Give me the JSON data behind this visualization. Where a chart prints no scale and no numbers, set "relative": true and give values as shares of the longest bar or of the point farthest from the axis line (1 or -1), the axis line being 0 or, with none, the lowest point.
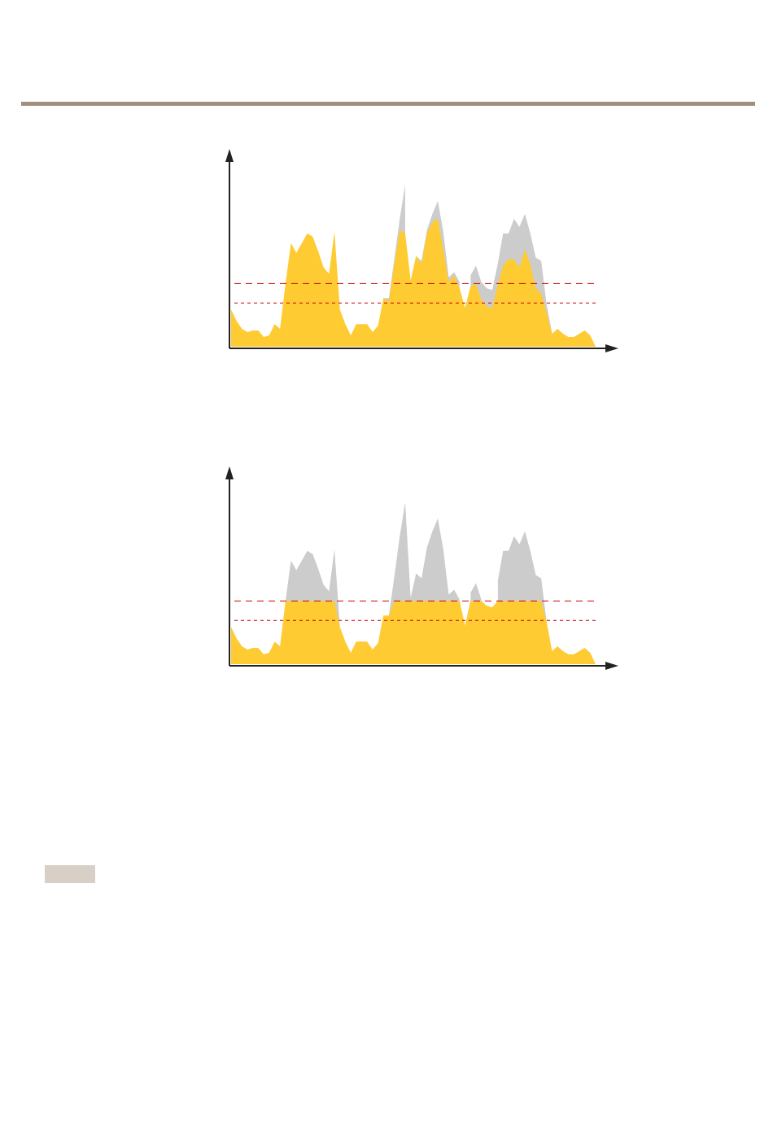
{
  "chart_data": [
    {
      "type": "area",
      "relative": true,
      "categories": [
        null,
        null,
        null,
        null,
        null,
        null,
        null,
        null,
        null,
        null,
        null,
        null,
        null,
        null,
        null,
        null,
        null,
        null,
        null,
        null,
        null,
        null,
        null,
        null,
        null,
        null,
        null,
        null,
        null,
        null,
        null,
        null,
        null,
        null,
        null,
        null,
        null,
        null,
        null,
        null,
        null,
        null,
        null,
        null,
        null,
        null,
        null,
        null,
        null,
        null,
        null,
        null,
        null,
        null,
        null,
        null,
        null,
        null,
        null,
        null,
        null,
        null,
        null,
        null,
        null,
        null,
        null,
        null
      ],
      "series": [
        {
          "color": "#cccccc",
          "values": [
            null,
            null,
            null,
            null,
            null,
            null,
            null,
            null,
            null,
            null,
            null,
            null,
            null,
            null,
            null,
            null,
            null,
            null,
            null,
            null,
            null,
            null,
            null,
            null,
            null,
            null,
            null,
            null,
            0.3,
            0.3,
            0.54,
            0.79,
            1,
            null,
            0.56,
            0.53,
            0.72,
            0.82,
            0.9,
            0.71,
            0.43,
            0.46,
            0.4,
            null,
            0.44,
            0.5,
            0.4,
            0.36,
            0.35,
            0.51,
            0.7,
            0.7,
            0.79,
            0.74,
            0.82,
            0.7,
            0.55,
            0.53,
            0.26,
            0.08,
            null,
            null,
            null,
            null,
            null,
            null,
            null,
            null
          ]
        },
        {
          "color": "#ffcb33",
          "values": [
            0.23,
            0.16,
            0.11,
            0.09,
            0.1,
            0.1,
            0.06,
            0.07,
            0.14,
            0.11,
            0.39,
            0.64,
            0.58,
            0.64,
            0.7,
            0.68,
            0.59,
            0.49,
            0.45,
            0.71,
            0.23,
            0.14,
            0.07,
            0.14,
            0.14,
            0.14,
            0.09,
            0.13,
            0.3,
            0.28,
            0.51,
            0.72,
            0.7,
            0.41,
            0.56,
            0.51,
            0.7,
            0.77,
            0.79,
            0.6,
            0.4,
            0.44,
            0.36,
            0.24,
            0.37,
            0.39,
            0.29,
            0.25,
            0.24,
            0.38,
            0.5,
            0.54,
            0.54,
            0.49,
            0.6,
            0.51,
            0.36,
            0.33,
            0.21,
            0.08,
            0.11,
            0.08,
            0.06,
            0.06,
            0.08,
            0.1,
            0.07,
            0
          ]
        }
      ],
      "ref_lines": [
        {
          "axis": "y",
          "value": 0.39,
          "color": "#c00000",
          "line_style": "dashed"
        },
        {
          "axis": "y",
          "value": 0.27,
          "color": "#d00000",
          "line_style": "dotted"
        }
      ]
    },
    {
      "type": "area",
      "relative": true,
      "categories": [
        null,
        null,
        null,
        null,
        null,
        null,
        null,
        null,
        null,
        null,
        null,
        null,
        null,
        null,
        null,
        null,
        null,
        null,
        null,
        null,
        null,
        null,
        null,
        null,
        null,
        null,
        null,
        null,
        null,
        null,
        null,
        null,
        null,
        null,
        null,
        null,
        null,
        null,
        null,
        null,
        null,
        null,
        null,
        null,
        null,
        null,
        null,
        null,
        null,
        null,
        null,
        null,
        null,
        null,
        null,
        null,
        null,
        null,
        null,
        null,
        null,
        null,
        null,
        null,
        null,
        null,
        null,
        null
      ],
      "series": [
        {
          "color": "#cccccc",
          "values": [
            null,
            null,
            null,
            null,
            null,
            null,
            null,
            null,
            null,
            null,
            0.39,
            0.64,
            0.58,
            0.64,
            0.7,
            0.68,
            0.59,
            0.49,
            0.45,
            0.71,
            0.23,
            null,
            null,
            null,
            null,
            null,
            null,
            null,
            null,
            0.3,
            0.54,
            0.79,
            1,
            0.41,
            0.56,
            0.53,
            0.72,
            0.82,
            0.9,
            0.71,
            0.43,
            0.46,
            0.4,
            null,
            0.44,
            0.5,
            0.4,
            null,
            null,
            0.51,
            0.7,
            0.7,
            0.79,
            0.74,
            0.82,
            0.7,
            0.55,
            0.53,
            0.26,
            null,
            null,
            null,
            null,
            null,
            null,
            null,
            null,
            null
          ]
        },
        {
          "color": "#ffcb33",
          "values": [
            0.23,
            0.16,
            0.11,
            0.09,
            0.1,
            0.1,
            0.06,
            0.07,
            0.14,
            0.11,
            0.39,
            0.39,
            0.39,
            0.39,
            0.39,
            0.39,
            0.39,
            0.39,
            0.39,
            0.39,
            0.23,
            0.14,
            0.07,
            0.14,
            0.14,
            0.14,
            0.09,
            0.13,
            0.3,
            0.3,
            0.39,
            0.39,
            0.39,
            0.39,
            0.39,
            0.39,
            0.39,
            0.39,
            0.39,
            0.39,
            0.39,
            0.39,
            0.39,
            0.24,
            0.39,
            0.39,
            0.39,
            0.36,
            0.35,
            0.39,
            0.39,
            0.39,
            0.39,
            0.39,
            0.39,
            0.39,
            0.39,
            0.39,
            0.26,
            0.08,
            0.11,
            0.08,
            0.06,
            0.06,
            0.08,
            0.1,
            0.07,
            0
          ]
        }
      ],
      "ref_lines": [
        {
          "axis": "y",
          "value": 0.39,
          "color": "#d00000",
          "line_style": "dashed"
        },
        {
          "axis": "y",
          "value": 0.27,
          "color": "#d00000",
          "line_style": "dotted"
        }
      ]
    }
  ]
}
